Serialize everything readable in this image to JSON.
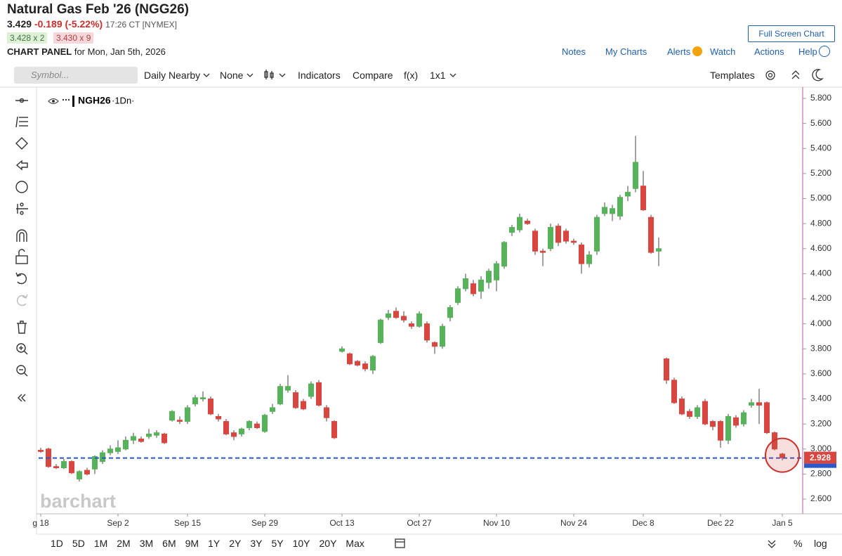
{
  "header": {
    "title": "Natural Gas Feb '26 (NGG26)",
    "last": "3.429",
    "change": "-0.189 (-5.22%)",
    "time": "17:26 CT [NYMEX]",
    "bid": "3.428 x 2",
    "ask": "3.430 x 9",
    "panel_label": "CHART PANEL",
    "panel_date": "for Mon, Jan 5th, 2026",
    "full_screen": "Full Screen Chart"
  },
  "links": [
    "Notes",
    "My Charts",
    "Alerts",
    "Watch",
    "Actions",
    "Help"
  ],
  "toolbar": {
    "symbol_placeholder": "Symbol...",
    "items": [
      "Daily Nearby",
      "None",
      "Indicators",
      "Compare",
      "f(x)",
      "1x1"
    ],
    "templates": "Templates"
  },
  "chart_data": {
    "type": "candlestick",
    "symbol": "NGH26",
    "interval": "·1Dn·",
    "watermark": "barchart",
    "up_color": "#56b35a",
    "down_color": "#d9463f",
    "categories": [
      "g 18",
      null,
      null,
      null,
      null,
      null,
      null,
      null,
      null,
      null,
      "Sep 2",
      null,
      null,
      null,
      null,
      null,
      null,
      null,
      null,
      "Sep 15",
      null,
      null,
      null,
      null,
      null,
      null,
      null,
      null,
      null,
      "Sep 29",
      null,
      null,
      null,
      null,
      null,
      null,
      null,
      null,
      null,
      "Oct 13",
      null,
      null,
      null,
      null,
      null,
      null,
      null,
      null,
      null,
      "Oct 27",
      null,
      null,
      null,
      null,
      null,
      null,
      null,
      null,
      null,
      "Nov 10",
      null,
      null,
      null,
      null,
      null,
      null,
      null,
      null,
      null,
      "Nov 24",
      null,
      null,
      null,
      null,
      null,
      null,
      null,
      null,
      "Dec 8",
      null,
      null,
      null,
      null,
      null,
      null,
      null,
      null,
      null,
      "Dec 22",
      null,
      null,
      null,
      null,
      null,
      null,
      null,
      "Jan 5"
    ],
    "open": [
      2.99,
      3.0,
      2.86,
      2.85,
      2.9,
      2.76,
      2.83,
      2.84,
      2.9,
      2.97,
      2.98,
      3.0,
      3.07,
      3.08,
      3.1,
      3.11,
      3.12,
      3.23,
      3.23,
      3.22,
      3.36,
      3.4,
      3.4,
      3.26,
      3.22,
      3.13,
      3.12,
      3.17,
      3.2,
      3.14,
      3.3,
      3.36,
      3.47,
      3.45,
      3.38,
      3.42,
      3.53,
      3.33,
      3.22,
      3.78,
      3.76,
      3.7,
      3.68,
      3.63,
      3.85,
      4.05,
      4.1,
      4.06,
      4.0,
      3.98,
      4.0,
      3.85,
      3.82,
      4.05,
      4.17,
      4.28,
      4.32,
      4.26,
      4.33,
      4.35,
      4.46,
      4.73,
      4.75,
      4.82,
      4.74,
      4.58,
      4.6,
      4.78,
      4.74,
      4.66,
      4.63,
      4.48,
      4.58,
      4.88,
      4.88,
      4.86,
      5.02,
      5.08,
      5.1,
      4.85,
      4.58,
      3.72,
      3.55,
      3.4,
      3.3,
      3.26,
      3.38,
      3.22,
      3.22,
      3.07,
      3.25,
      3.2,
      3.35,
      3.37,
      3.37,
      3.13,
      2.96
    ],
    "high": [
      3.01,
      3.01,
      2.88,
      2.92,
      2.91,
      2.83,
      2.85,
      2.95,
      2.99,
      3.03,
      3.07,
      3.1,
      3.13,
      3.1,
      3.16,
      3.15,
      3.13,
      3.31,
      3.26,
      3.35,
      3.43,
      3.46,
      3.42,
      3.28,
      3.24,
      3.15,
      3.17,
      3.23,
      3.22,
      3.28,
      3.36,
      3.52,
      3.59,
      3.47,
      3.4,
      3.54,
      3.55,
      3.35,
      3.23,
      3.82,
      3.77,
      3.71,
      3.7,
      3.75,
      4.04,
      4.11,
      4.13,
      4.1,
      4.02,
      4.1,
      4.02,
      3.86,
      4.0,
      4.15,
      4.3,
      4.4,
      4.35,
      4.38,
      4.44,
      4.5,
      4.66,
      4.79,
      4.88,
      4.84,
      4.76,
      4.6,
      4.8,
      4.8,
      4.76,
      4.68,
      4.65,
      4.58,
      4.87,
      4.97,
      4.95,
      5.03,
      5.1,
      5.5,
      5.22,
      4.87,
      4.69,
      3.73,
      3.57,
      3.42,
      3.32,
      3.35,
      3.4,
      3.23,
      3.23,
      3.28,
      3.27,
      3.31,
      3.4,
      3.48,
      3.38,
      3.14,
      2.97
    ],
    "low": [
      2.97,
      2.85,
      2.84,
      2.84,
      2.8,
      2.74,
      2.79,
      2.8,
      2.88,
      2.95,
      2.96,
      2.99,
      3.04,
      3.05,
      3.08,
      3.09,
      3.04,
      3.22,
      3.2,
      3.2,
      3.34,
      3.38,
      3.27,
      3.22,
      3.11,
      3.07,
      3.1,
      3.15,
      3.16,
      3.13,
      3.28,
      3.35,
      3.45,
      3.32,
      3.31,
      3.4,
      3.34,
      3.22,
      3.08,
      3.77,
      3.67,
      3.66,
      3.62,
      3.6,
      3.84,
      4.03,
      4.04,
      4.01,
      3.96,
      3.97,
      3.85,
      3.76,
      3.8,
      4.02,
      4.15,
      4.26,
      4.22,
      4.2,
      4.28,
      4.26,
      4.44,
      4.7,
      4.73,
      4.79,
      4.55,
      4.46,
      4.58,
      4.62,
      4.64,
      4.63,
      4.4,
      4.45,
      4.55,
      4.86,
      4.82,
      4.83,
      4.98,
      5.05,
      4.9,
      4.56,
      4.46,
      3.52,
      3.36,
      3.27,
      3.24,
      3.24,
      3.19,
      3.15,
      3.01,
      3.04,
      3.17,
      3.18,
      3.33,
      3.2,
      3.12,
      2.99,
      2.91
    ],
    "close": [
      2.98,
      2.86,
      2.85,
      2.9,
      2.81,
      2.82,
      2.8,
      2.94,
      2.97,
      3.0,
      3.01,
      3.07,
      3.1,
      3.06,
      3.12,
      3.13,
      3.05,
      3.3,
      3.22,
      3.33,
      3.41,
      3.41,
      3.28,
      3.24,
      3.12,
      3.1,
      3.16,
      3.22,
      3.17,
      3.27,
      3.33,
      3.5,
      3.5,
      3.33,
      3.32,
      3.52,
      3.35,
      3.25,
      3.09,
      3.8,
      3.68,
      3.67,
      3.64,
      3.74,
      4.03,
      4.08,
      4.05,
      4.03,
      3.98,
      4.08,
      3.87,
      3.82,
      3.98,
      4.13,
      4.28,
      4.36,
      4.24,
      4.35,
      4.42,
      4.48,
      4.65,
      4.77,
      4.85,
      4.8,
      4.58,
      4.57,
      4.77,
      4.65,
      4.66,
      4.65,
      4.48,
      4.55,
      4.85,
      4.93,
      4.92,
      5.01,
      5.05,
      5.29,
      4.91,
      4.57,
      4.6,
      3.55,
      3.37,
      3.28,
      3.26,
      3.33,
      3.2,
      3.18,
      3.07,
      3.26,
      3.19,
      3.29,
      3.37,
      3.35,
      3.13,
      3.0,
      2.93
    ],
    "ylim": [
      2.488,
      5.884
    ],
    "yticks": [
      {
        "value": 2.6,
        "label": "2.600"
      },
      {
        "value": 2.8,
        "label": "2.800"
      },
      {
        "value": 3.0,
        "label": "3.000"
      },
      {
        "value": 3.2,
        "label": "3.200"
      },
      {
        "value": 3.4,
        "label": "3.400"
      },
      {
        "value": 3.6,
        "label": "3.600"
      },
      {
        "value": 3.8,
        "label": "3.800"
      },
      {
        "value": 4.0,
        "label": "4.000"
      },
      {
        "value": 4.2,
        "label": "4.200"
      },
      {
        "value": 4.4,
        "label": "4.400"
      },
      {
        "value": 4.6,
        "label": "4.600"
      },
      {
        "value": 4.8,
        "label": "4.800"
      },
      {
        "value": 5.0,
        "label": "5.000"
      },
      {
        "value": 5.2,
        "label": "5.200"
      },
      {
        "value": 5.4,
        "label": "5.400"
      },
      {
        "value": 5.6,
        "label": "5.600"
      },
      {
        "value": 5.8,
        "label": "5.800"
      }
    ],
    "last_price": 2.928
  },
  "periods": [
    "1D",
    "5D",
    "1M",
    "2M",
    "3M",
    "6M",
    "9M",
    "1Y",
    "2Y",
    "3Y",
    "5Y",
    "10Y",
    "20Y",
    "Max"
  ],
  "scale_options": [
    "%",
    "log"
  ]
}
